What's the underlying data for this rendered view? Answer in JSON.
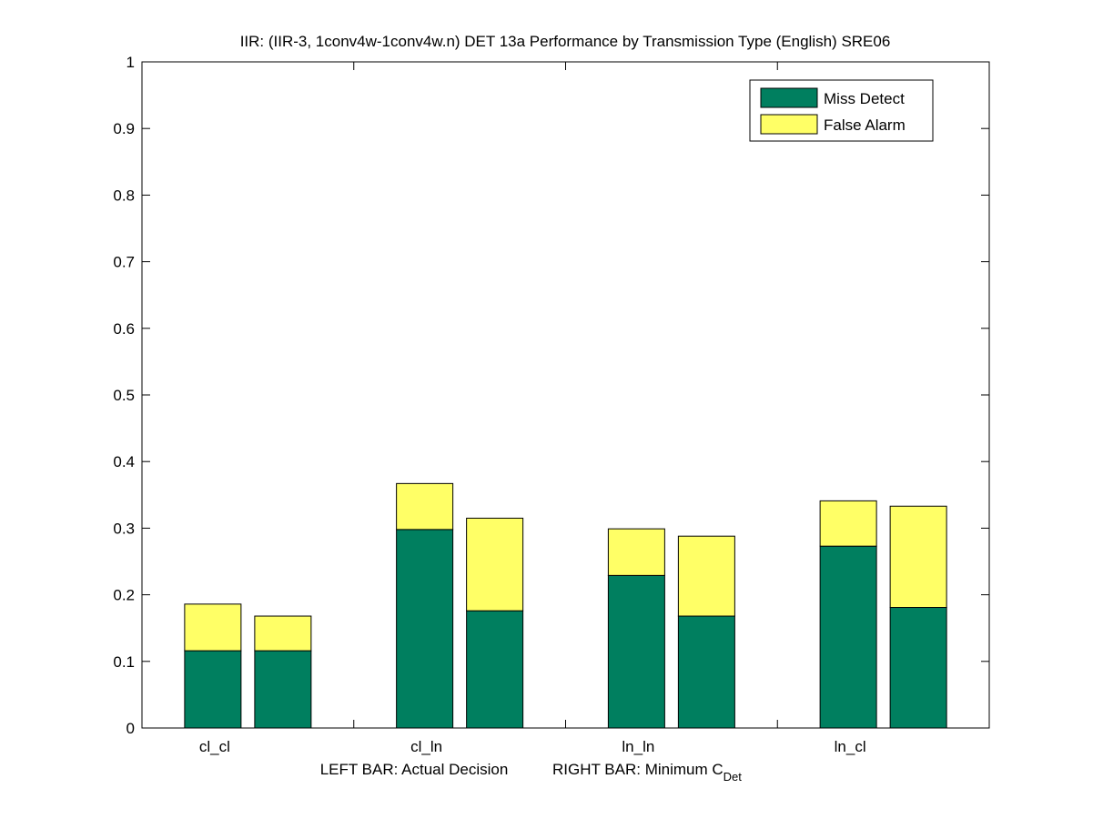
{
  "chart_data": {
    "type": "bar",
    "stacked": true,
    "title": "IIR: (IIR-3, 1conv4w-1conv4w.n) DET 13a Performance by Transmission Type (English) SRE06",
    "xlabel": {
      "left": "LEFT BAR: Actual Decision",
      "right": "RIGHT BAR: Minimum C",
      "right_subscript": "Det"
    },
    "ylim": [
      0,
      1
    ],
    "yticks": [
      "0",
      "0.1",
      "0.2",
      "0.3",
      "0.4",
      "0.5",
      "0.6",
      "0.7",
      "0.8",
      "0.9",
      "1"
    ],
    "categories": [
      "cl_cl",
      "cl_ln",
      "ln_ln",
      "ln_cl"
    ],
    "bars_per_category": [
      "Actual Decision",
      "Minimum C_Det"
    ],
    "series": [
      {
        "name": "Miss Detect",
        "color": "#007f5f",
        "values": [
          [
            0.116,
            0.116
          ],
          [
            0.298,
            0.176
          ],
          [
            0.229,
            0.168
          ],
          [
            0.273,
            0.181
          ]
        ]
      },
      {
        "name": "False Alarm",
        "color": "#ffff66",
        "values": [
          [
            0.07,
            0.052
          ],
          [
            0.069,
            0.139
          ],
          [
            0.07,
            0.12
          ],
          [
            0.068,
            0.152
          ]
        ]
      }
    ],
    "legend": {
      "placement": "top-right",
      "entries": [
        "Miss Detect",
        "False Alarm"
      ]
    },
    "grid": false
  }
}
